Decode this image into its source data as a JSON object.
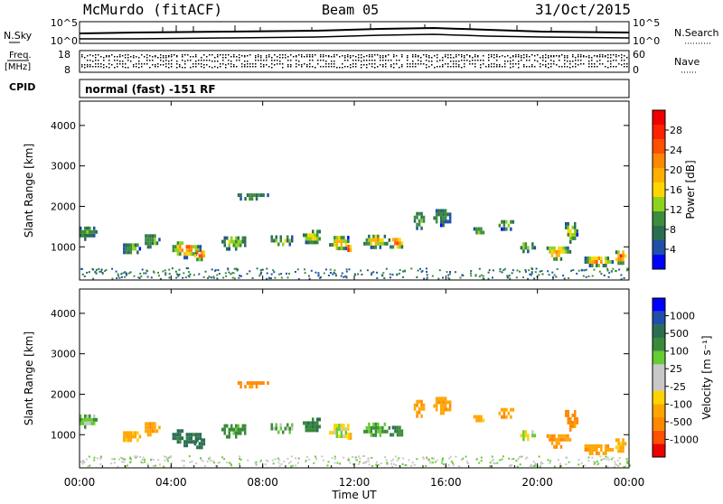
{
  "header": {
    "station": "McMurdo (fitACF)",
    "beam": "Beam 05",
    "date": "31/Oct/2015"
  },
  "noise_panel": {
    "left_label": "N.Sky",
    "right_label": "N.Search",
    "left_ticks": [
      "10^5",
      "10^0"
    ],
    "right_ticks": [
      "10^5",
      "10^0"
    ]
  },
  "freq_panel": {
    "left_label_1": "Freq.",
    "left_label_2": "[MHz]",
    "left_ticks": [
      "18",
      "8"
    ],
    "right_label": "Nave",
    "right_ticks": [
      "60",
      "0"
    ]
  },
  "cpid": {
    "label": "CPID",
    "text": "normal (fast) -151 RF"
  },
  "axes": {
    "ylabel": "Slant Range [km]",
    "yticks": [
      "1000",
      "2000",
      "3000",
      "4000"
    ],
    "xticks": [
      "00:00",
      "04:00",
      "08:00",
      "12:00",
      "16:00",
      "20:00",
      "00:00"
    ],
    "xlabel": "Time UT"
  },
  "colors": {
    "power_scale": [
      "#0000ff",
      "#1f4fa8",
      "#2a6e52",
      "#3c8c3c",
      "#8ed21e",
      "#ffd700",
      "#ffb000",
      "#ff8800",
      "#ff5000",
      "#ff2000",
      "#ee0000"
    ],
    "velocity_scale": [
      "#ee0000",
      "#ff5000",
      "#ff8800",
      "#ffa500",
      "#ffd300",
      "#c8c8c8",
      "#c8c8c8",
      "#66cc33",
      "#3a8a3a",
      "#2a6e52",
      "#1f4fa8",
      "#0000ff"
    ]
  },
  "chart_data": [
    {
      "type": "heatmap",
      "name": "power",
      "colorbar_label": "Power [dB]",
      "colorbar_ticks": [
        "4",
        "8",
        "12",
        "16",
        "20",
        "24",
        "28"
      ],
      "xlim_hours": [
        0,
        24
      ],
      "ylim_km": [
        180,
        4600
      ],
      "grid": false,
      "echo_regions": [
        {
          "t": 0.3,
          "r": 1400,
          "dt": 0.8,
          "dr": 380,
          "v": 10
        },
        {
          "t": 2.2,
          "r": 1000,
          "dt": 0.8,
          "dr": 350,
          "v": 12
        },
        {
          "t": 3.1,
          "r": 1200,
          "dt": 0.7,
          "dr": 400,
          "v": 11
        },
        {
          "t": 4.6,
          "r": 1000,
          "dt": 1.3,
          "dr": 450,
          "v": 22
        },
        {
          "t": 5.2,
          "r": 850,
          "dt": 0.6,
          "dr": 300,
          "v": 27
        },
        {
          "t": 6.7,
          "r": 1150,
          "dt": 1.2,
          "dr": 400,
          "v": 13
        },
        {
          "t": 7.5,
          "r": 2300,
          "dt": 1.4,
          "dr": 220,
          "v": 9
        },
        {
          "t": 8.8,
          "r": 1200,
          "dt": 1.1,
          "dr": 350,
          "v": 12
        },
        {
          "t": 10.1,
          "r": 1300,
          "dt": 0.9,
          "dr": 420,
          "v": 14
        },
        {
          "t": 11.3,
          "r": 1150,
          "dt": 1.0,
          "dr": 420,
          "v": 18
        },
        {
          "t": 11.7,
          "r": 1000,
          "dt": 0.4,
          "dr": 280,
          "v": 25
        },
        {
          "t": 12.9,
          "r": 1200,
          "dt": 1.2,
          "dr": 380,
          "v": 17
        },
        {
          "t": 13.8,
          "r": 1150,
          "dt": 0.7,
          "dr": 320,
          "v": 23
        },
        {
          "t": 14.8,
          "r": 1700,
          "dt": 0.6,
          "dr": 500,
          "v": 10
        },
        {
          "t": 15.8,
          "r": 1800,
          "dt": 0.9,
          "dr": 450,
          "v": 9
        },
        {
          "t": 17.4,
          "r": 1450,
          "dt": 0.6,
          "dr": 250,
          "v": 12
        },
        {
          "t": 18.6,
          "r": 1600,
          "dt": 0.8,
          "dr": 300,
          "v": 11
        },
        {
          "t": 19.5,
          "r": 1050,
          "dt": 0.7,
          "dr": 300,
          "v": 13
        },
        {
          "t": 20.8,
          "r": 900,
          "dt": 1.2,
          "dr": 400,
          "v": 19
        },
        {
          "t": 21.4,
          "r": 1400,
          "dt": 0.6,
          "dr": 600,
          "v": 15
        },
        {
          "t": 22.6,
          "r": 700,
          "dt": 1.3,
          "dr": 300,
          "v": 21
        },
        {
          "t": 23.6,
          "r": 800,
          "dt": 0.6,
          "dr": 400,
          "v": 24
        }
      ]
    },
    {
      "type": "heatmap",
      "name": "velocity",
      "colorbar_label": "Velocity [m s⁻¹]",
      "colorbar_ticks": [
        "-1000",
        "-500",
        "-100",
        "-25",
        "25",
        "100",
        "500",
        "1000"
      ],
      "xlim_hours": [
        0,
        24
      ],
      "ylim_km": [
        180,
        4600
      ],
      "grid": false,
      "echo_regions": [
        {
          "t": 0.3,
          "r": 1400,
          "dt": 0.8,
          "dr": 380,
          "v": 60
        },
        {
          "t": 2.2,
          "r": 1000,
          "dt": 0.8,
          "dr": 350,
          "v": -150
        },
        {
          "t": 3.1,
          "r": 1200,
          "dt": 0.7,
          "dr": 400,
          "v": -200
        },
        {
          "t": 4.6,
          "r": 1000,
          "dt": 1.3,
          "dr": 450,
          "v": 300
        },
        {
          "t": 5.2,
          "r": 850,
          "dt": 0.6,
          "dr": 300,
          "v": 350
        },
        {
          "t": 6.7,
          "r": 1150,
          "dt": 1.2,
          "dr": 400,
          "v": 150
        },
        {
          "t": 7.5,
          "r": 2300,
          "dt": 1.4,
          "dr": 220,
          "v": -300
        },
        {
          "t": 8.8,
          "r": 1200,
          "dt": 1.1,
          "dr": 350,
          "v": 80
        },
        {
          "t": 10.1,
          "r": 1300,
          "dt": 0.9,
          "dr": 420,
          "v": 200
        },
        {
          "t": 11.3,
          "r": 1150,
          "dt": 1.0,
          "dr": 420,
          "v": 0
        },
        {
          "t": 11.7,
          "r": 1000,
          "dt": 0.4,
          "dr": 280,
          "v": -120
        },
        {
          "t": 12.9,
          "r": 1200,
          "dt": 1.2,
          "dr": 380,
          "v": 120
        },
        {
          "t": 13.8,
          "r": 1150,
          "dt": 0.7,
          "dr": 320,
          "v": 200
        },
        {
          "t": 14.8,
          "r": 1700,
          "dt": 0.6,
          "dr": 500,
          "v": -250
        },
        {
          "t": 15.8,
          "r": 1800,
          "dt": 0.9,
          "dr": 450,
          "v": -200
        },
        {
          "t": 17.4,
          "r": 1450,
          "dt": 0.6,
          "dr": 250,
          "v": -150
        },
        {
          "t": 18.6,
          "r": 1600,
          "dt": 0.8,
          "dr": 300,
          "v": -180
        },
        {
          "t": 19.5,
          "r": 1050,
          "dt": 0.7,
          "dr": 300,
          "v": 10
        },
        {
          "t": 20.8,
          "r": 900,
          "dt": 1.2,
          "dr": 400,
          "v": -250
        },
        {
          "t": 21.4,
          "r": 1400,
          "dt": 0.6,
          "dr": 600,
          "v": -300
        },
        {
          "t": 22.6,
          "r": 700,
          "dt": 1.3,
          "dr": 300,
          "v": -200
        },
        {
          "t": 23.6,
          "r": 800,
          "dt": 0.6,
          "dr": 400,
          "v": -150
        }
      ]
    }
  ]
}
